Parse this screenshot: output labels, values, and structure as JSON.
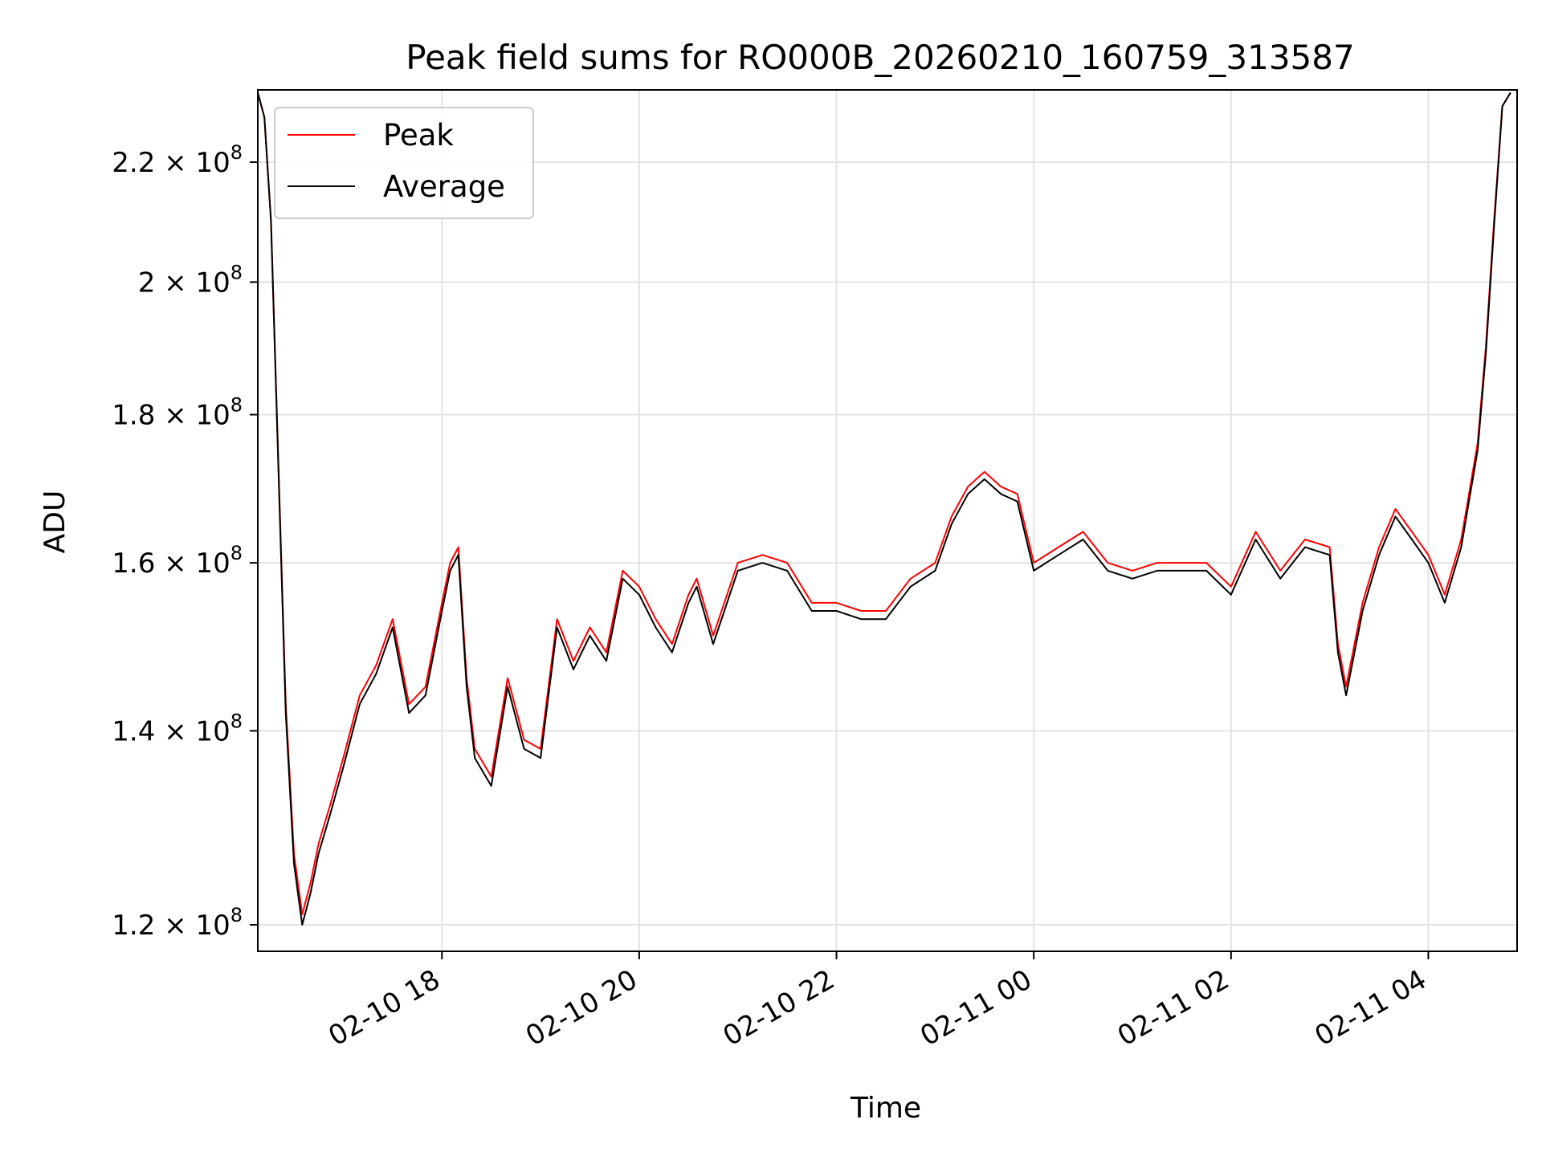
{
  "chart_data": {
    "type": "line",
    "title": "Peak field sums for RO000B_20260210_160759_313587",
    "xlabel": "Time",
    "ylabel": "ADU",
    "yscale": "log",
    "xlim": [
      "2026-02-10T16:08",
      "2026-02-11T04:54"
    ],
    "ylim": [
      117500000,
      233000000
    ],
    "grid": true,
    "legend_position": "upper-left",
    "x_ticks": [
      {
        "value": "2026-02-10T18:00",
        "label": "02-10 18"
      },
      {
        "value": "2026-02-10T20:00",
        "label": "02-10 20"
      },
      {
        "value": "2026-02-10T22:00",
        "label": "02-10 22"
      },
      {
        "value": "2026-02-11T00:00",
        "label": "02-11 00"
      },
      {
        "value": "2026-02-11T02:00",
        "label": "02-11 02"
      },
      {
        "value": "2026-02-11T04:00",
        "label": "02-11 04"
      }
    ],
    "y_ticks": [
      {
        "value": 120000000,
        "mantissa": "1.2",
        "exp": "8"
      },
      {
        "value": 140000000,
        "mantissa": "1.4",
        "exp": "8"
      },
      {
        "value": 160000000,
        "mantissa": "1.6",
        "exp": "8"
      },
      {
        "value": 180000000,
        "mantissa": "1.8",
        "exp": "8"
      },
      {
        "value": 200000000,
        "mantissa": "2",
        "exp": "8"
      },
      {
        "value": 220000000,
        "mantissa": "2.2",
        "exp": "8"
      }
    ],
    "x_time_points": [
      "2026-02-10T16:08",
      "2026-02-10T16:12",
      "2026-02-10T16:16",
      "2026-02-10T16:25",
      "2026-02-10T16:30",
      "2026-02-10T16:35",
      "2026-02-10T16:40",
      "2026-02-10T16:45",
      "2026-02-10T16:52",
      "2026-02-10T17:00",
      "2026-02-10T17:10",
      "2026-02-10T17:20",
      "2026-02-10T17:30",
      "2026-02-10T17:40",
      "2026-02-10T17:50",
      "2026-02-10T18:00",
      "2026-02-10T18:05",
      "2026-02-10T18:10",
      "2026-02-10T18:15",
      "2026-02-10T18:20",
      "2026-02-10T18:30",
      "2026-02-10T18:40",
      "2026-02-10T18:50",
      "2026-02-10T19:00",
      "2026-02-10T19:10",
      "2026-02-10T19:20",
      "2026-02-10T19:30",
      "2026-02-10T19:40",
      "2026-02-10T19:50",
      "2026-02-10T20:00",
      "2026-02-10T20:10",
      "2026-02-10T20:20",
      "2026-02-10T20:30",
      "2026-02-10T20:35",
      "2026-02-10T20:45",
      "2026-02-10T21:00",
      "2026-02-10T21:15",
      "2026-02-10T21:30",
      "2026-02-10T21:45",
      "2026-02-10T22:00",
      "2026-02-10T22:15",
      "2026-02-10T22:30",
      "2026-02-10T22:45",
      "2026-02-10T23:00",
      "2026-02-10T23:10",
      "2026-02-10T23:20",
      "2026-02-10T23:30",
      "2026-02-10T23:40",
      "2026-02-10T23:50",
      "2026-02-11T00:00",
      "2026-02-11T00:15",
      "2026-02-11T00:30",
      "2026-02-11T00:45",
      "2026-02-11T01:00",
      "2026-02-11T01:15",
      "2026-02-11T01:30",
      "2026-02-11T01:45",
      "2026-02-11T02:00",
      "2026-02-11T02:15",
      "2026-02-11T02:30",
      "2026-02-11T02:45",
      "2026-02-11T03:00",
      "2026-02-11T03:05",
      "2026-02-11T03:10",
      "2026-02-11T03:20",
      "2026-02-11T03:30",
      "2026-02-11T03:40",
      "2026-02-11T03:50",
      "2026-02-11T04:00",
      "2026-02-11T04:10",
      "2026-02-11T04:20",
      "2026-02-11T04:30",
      "2026-02-11T04:35",
      "2026-02-11T04:40",
      "2026-02-11T04:45",
      "2026-02-11T04:50"
    ],
    "series": [
      {
        "name": "Peak",
        "color": "#ff0000",
        "values": [
          232.5,
          228,
          210,
          143,
          127,
          121,
          124,
          128,
          132,
          137,
          144,
          147.5,
          153,
          143,
          145,
          155,
          160,
          162,
          146,
          138,
          135,
          146,
          139,
          138,
          153,
          148,
          152,
          149,
          159,
          157,
          153,
          150,
          156,
          158,
          151,
          160,
          161,
          160,
          155,
          155,
          154,
          154,
          158,
          160,
          166,
          170,
          172,
          170,
          169,
          160,
          162,
          164,
          160,
          159,
          160,
          160,
          160,
          157,
          164,
          159,
          163,
          162,
          150,
          145,
          155,
          162,
          167,
          164,
          161,
          156,
          163,
          176,
          190,
          210,
          230,
          232.5
        ]
      },
      {
        "name": "Average",
        "color": "#000000",
        "values": [
          232.5,
          228,
          210,
          142,
          126,
          120,
          123,
          127,
          131,
          136,
          143,
          146.5,
          152,
          142,
          144,
          154,
          159,
          161,
          145,
          137,
          134,
          145,
          138,
          137,
          152,
          147,
          151,
          148,
          158,
          156,
          152,
          149,
          155,
          157,
          150,
          159,
          160,
          159,
          154,
          154,
          153,
          153,
          157,
          159,
          165,
          169,
          171,
          169,
          168,
          159,
          161,
          163,
          159,
          158,
          159,
          159,
          159,
          156,
          163,
          158,
          162,
          161,
          149,
          144,
          154,
          161,
          166,
          163,
          160,
          155,
          162,
          175,
          189,
          209,
          230,
          232.5
        ]
      }
    ],
    "value_unit_multiplier": 1000000
  }
}
